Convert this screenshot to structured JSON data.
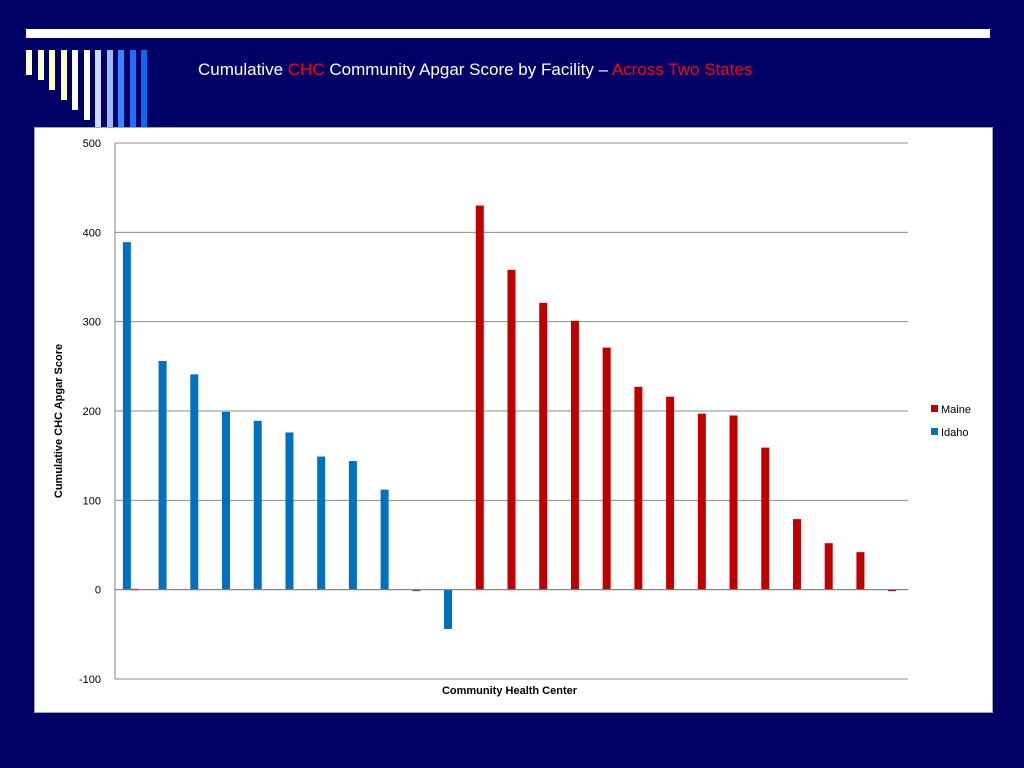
{
  "slide": {
    "title_parts": [
      "Cumulative ",
      "CHC",
      " Community Apgar Score by Facility – ",
      "Across Two States"
    ],
    "colors": {
      "background": "#000066",
      "highlight": "#ff0000"
    }
  },
  "chart_data": {
    "type": "bar",
    "ylabel": "Cumulative CHC Apgar Score",
    "xlabel": "Community Health Center",
    "ylim": [
      -100,
      500
    ],
    "yticks": [
      "500",
      "400",
      "300",
      "200",
      "100",
      "0",
      "-100"
    ],
    "grid": true,
    "legend_position": "right",
    "series": [
      {
        "name": "Maine",
        "color": "#c00000",
        "values": [
          1,
          null,
          null,
          null,
          null,
          null,
          null,
          null,
          null,
          null,
          null,
          430,
          358,
          321,
          301,
          271,
          227,
          216,
          197,
          195,
          159,
          79,
          52,
          42,
          -1
        ]
      },
      {
        "name": "Idaho",
        "color": "#0070c0",
        "values": [
          389,
          256,
          241,
          199,
          189,
          176,
          149,
          144,
          112,
          -1,
          -44,
          null,
          null,
          null,
          null,
          null,
          null,
          null,
          null,
          null,
          null,
          null,
          null,
          null,
          null
        ]
      }
    ]
  }
}
